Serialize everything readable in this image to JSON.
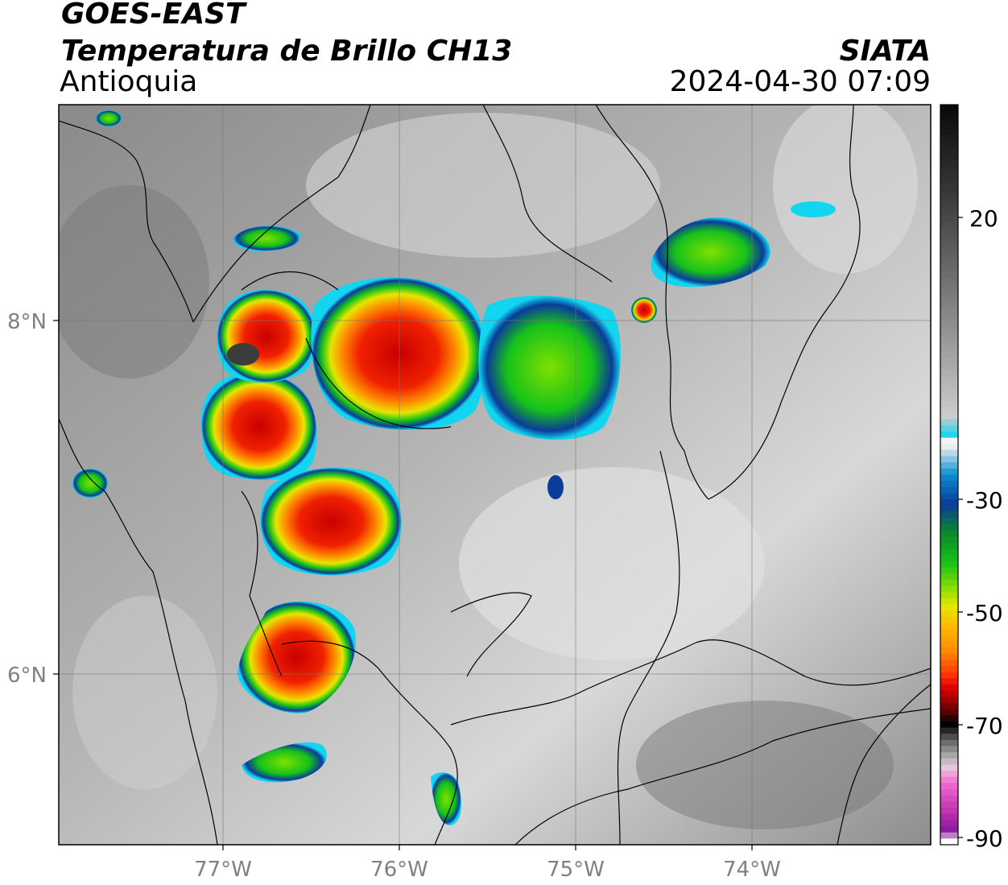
{
  "header": {
    "satellite": "GOES-EAST",
    "product": "Temperatura de Brillo CH13",
    "region": "Antioquia",
    "organization": "SIATA",
    "datetime": "2024-04-30 07:09"
  },
  "map": {
    "lon_ticks": [
      "77°W",
      "76°W",
      "75°W",
      "74°W"
    ],
    "lat_ticks": [
      "8°N",
      "6°N"
    ],
    "gridlines": true
  },
  "colorbar": {
    "ticks": [
      "20",
      "-30",
      "-50",
      "-70",
      "-90"
    ],
    "range": [
      -90,
      30
    ],
    "colors": {
      "warm_gray_top": "#0a0a0a",
      "gray_mid": "#9a9a9a",
      "white": "#f4f4f4",
      "cyan": "#12d6f0",
      "blue": "#0a3c9a",
      "green": "#16c21a",
      "yellow": "#e6e600",
      "orange": "#ff8c00",
      "red": "#e00000",
      "dark_red": "#6a0000",
      "black": "#000000",
      "pink": "#f36ad0",
      "purple": "#8a1a9a"
    }
  }
}
